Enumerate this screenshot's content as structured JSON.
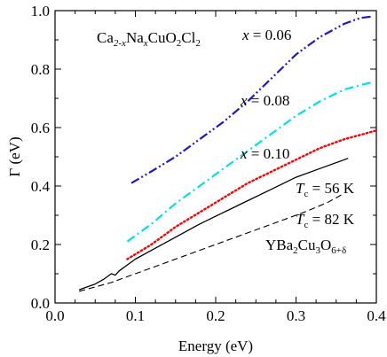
{
  "chart_data": {
    "type": "line",
    "xlabel": "Energy (eV)",
    "ylabel": "Γ (eV)",
    "xlim": [
      0.0,
      0.4
    ],
    "ylim": [
      0.0,
      1.0
    ],
    "xticks": [
      "0.0",
      "0.1",
      "0.2",
      "0.3",
      "0.4"
    ],
    "yticks": [
      "0.0",
      "0.2",
      "0.4",
      "0.6",
      "0.8",
      "1.0"
    ],
    "grid": false,
    "legend": "none",
    "annotations": {
      "material_a": {
        "main1": "Ca",
        "sub1": "2-x",
        "main2": "Na",
        "sub2": "x",
        "main3": "CuO",
        "sub3": "2",
        "main4": "Cl",
        "sub4": "2"
      },
      "x006": {
        "var": "x",
        "rest": " = 0.06"
      },
      "x008": {
        "var": "x",
        "rest": " = 0.08"
      },
      "x010": {
        "var": "x",
        "rest": " = 0.10"
      },
      "tc56": {
        "var": "T",
        "sub": "c",
        "rest": " = 56 K"
      },
      "tc82": {
        "var": "T",
        "sub": "c",
        "rest": " = 82 K"
      },
      "material_b": {
        "main1": "YBa",
        "sub1": "2",
        "main2": "Cu",
        "sub2": "3",
        "main3": "O",
        "sub3": "6+δ"
      }
    },
    "series": [
      {
        "key": "x006",
        "color": "#1a1acc",
        "dash": "dashdotdot",
        "x": [
          0.095,
          0.12,
          0.15,
          0.18,
          0.21,
          0.24,
          0.27,
          0.3,
          0.33,
          0.36,
          0.38,
          0.395
        ],
        "y": [
          0.41,
          0.45,
          0.5,
          0.56,
          0.62,
          0.69,
          0.77,
          0.85,
          0.91,
          0.955,
          0.975,
          0.98
        ]
      },
      {
        "key": "x008",
        "color": "#00e0e8",
        "dash": "dashdot",
        "x": [
          0.09,
          0.12,
          0.15,
          0.18,
          0.21,
          0.24,
          0.27,
          0.3,
          0.33,
          0.36,
          0.38,
          0.395
        ],
        "y": [
          0.21,
          0.27,
          0.34,
          0.4,
          0.46,
          0.52,
          0.58,
          0.64,
          0.69,
          0.73,
          0.745,
          0.755
        ]
      },
      {
        "key": "x010",
        "color": "#ff0000",
        "dash": "dotted",
        "x": [
          0.09,
          0.12,
          0.15,
          0.18,
          0.21,
          0.24,
          0.27,
          0.3,
          0.33,
          0.36,
          0.38,
          0.4
        ],
        "y": [
          0.15,
          0.2,
          0.26,
          0.31,
          0.36,
          0.41,
          0.45,
          0.49,
          0.53,
          0.56,
          0.575,
          0.59
        ]
      },
      {
        "key": "tc56",
        "color": "#000000",
        "dash": "solid",
        "x": [
          0.03,
          0.04,
          0.05,
          0.06,
          0.07,
          0.075,
          0.08,
          0.09,
          0.1,
          0.12,
          0.15,
          0.18,
          0.21,
          0.24,
          0.27,
          0.3,
          0.33,
          0.365
        ],
        "y": [
          0.045,
          0.055,
          0.065,
          0.08,
          0.1,
          0.095,
          0.11,
          0.13,
          0.15,
          0.18,
          0.225,
          0.27,
          0.31,
          0.35,
          0.39,
          0.43,
          0.46,
          0.495
        ]
      },
      {
        "key": "tc82",
        "color": "#000000",
        "dash": "dashed",
        "x": [
          0.03,
          0.05,
          0.07,
          0.1,
          0.13,
          0.16,
          0.19,
          0.22,
          0.25,
          0.28,
          0.31,
          0.34,
          0.36
        ],
        "y": [
          0.04,
          0.055,
          0.07,
          0.1,
          0.13,
          0.16,
          0.19,
          0.22,
          0.25,
          0.28,
          0.31,
          0.345,
          0.375
        ]
      }
    ]
  }
}
